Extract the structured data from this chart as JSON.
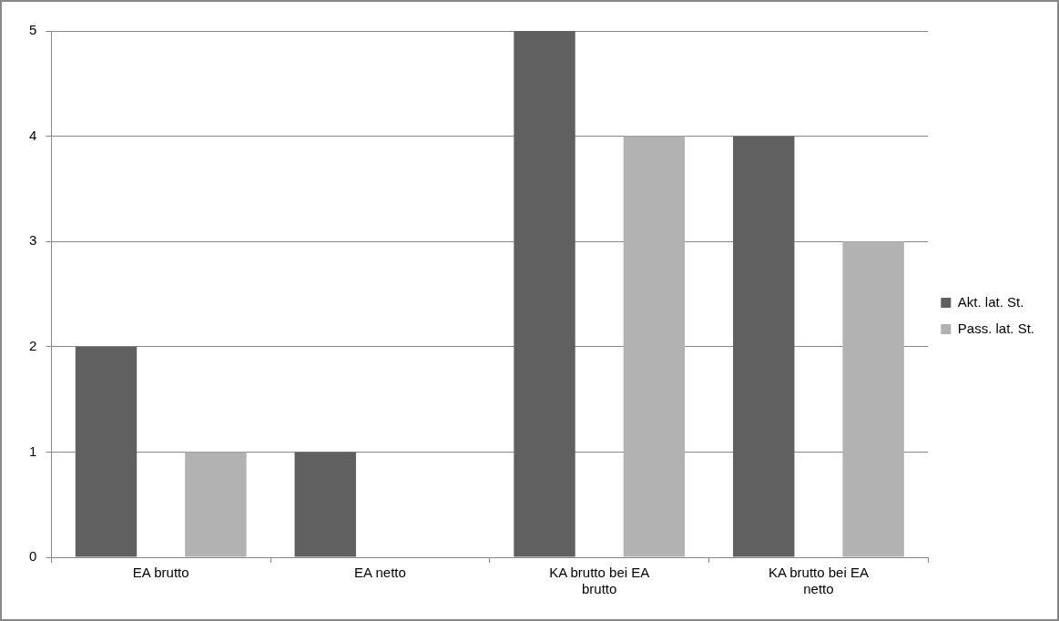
{
  "chart_data": {
    "type": "bar",
    "categories": [
      "EA brutto",
      "EA netto",
      "KA brutto bei EA brutto",
      "KA brutto bei EA netto"
    ],
    "series": [
      {
        "name": "Akt. lat. St.",
        "color": "#606060",
        "values": [
          2,
          1,
          5,
          4
        ]
      },
      {
        "name": "Pass. lat. St.",
        "color": "#b2b2b2",
        "values": [
          1,
          0,
          4,
          3
        ]
      }
    ],
    "ylim": [
      0,
      5
    ],
    "yticks": [
      0,
      1,
      2,
      3,
      4,
      5
    ],
    "grid": "y",
    "legend": "right"
  }
}
